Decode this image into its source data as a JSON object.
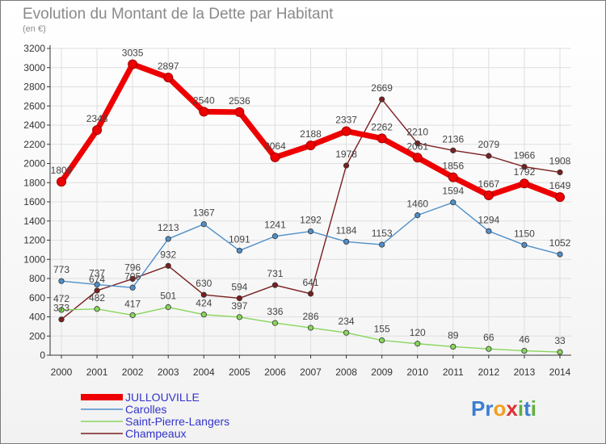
{
  "chart_data": {
    "type": "line",
    "title": "Evolution du Montant de la Dette par Habitant",
    "subtitle": "(en €)",
    "xlabel": "",
    "ylabel": "",
    "x": [
      "2000",
      "2001",
      "2002",
      "2003",
      "2004",
      "2005",
      "2006",
      "2007",
      "2008",
      "2009",
      "2010",
      "2011",
      "2012",
      "2013",
      "2014"
    ],
    "ylim": [
      0,
      3200
    ],
    "yticks": [
      "0",
      "200",
      "400",
      "600",
      "800",
      "1000",
      "1200",
      "1400",
      "1600",
      "1800",
      "2000",
      "2200",
      "2400",
      "2600",
      "2800",
      "3000",
      "3200"
    ],
    "grid": true,
    "legend_position": "bottom-left",
    "series": [
      {
        "name": "JULLOUVILLE",
        "color": "#ee0000",
        "values": [
          1809,
          2348,
          3035,
          2897,
          2540,
          2536,
          2064,
          2188,
          2337,
          2262,
          2061,
          1856,
          1667,
          1792,
          1649
        ],
        "labels": [
          "1809",
          "2348",
          "3035",
          "2897",
          "2540",
          "2536",
          "2064",
          "2188",
          "2337",
          "2262",
          "2061",
          "1856",
          "1667",
          "1792",
          "1649"
        ]
      },
      {
        "name": "Carolles",
        "color": "#4f8fc9",
        "values": [
          773,
          737,
          705,
          1213,
          1367,
          1091,
          1241,
          1292,
          1184,
          1153,
          1460,
          1594,
          1294,
          1150,
          1052
        ],
        "labels": [
          "773",
          "737",
          "705",
          "1213",
          "1367",
          "1091",
          "1241",
          "1292",
          "1184",
          "1153",
          "1460",
          "1594",
          "1294",
          "1150",
          "1052"
        ]
      },
      {
        "name": "Saint-Pierre-Langers",
        "color": "#88d65c",
        "values": [
          472,
          482,
          417,
          501,
          424,
          397,
          336,
          286,
          234,
          155,
          120,
          89,
          66,
          46,
          33
        ],
        "labels": [
          "472",
          "482",
          "417",
          "501",
          "424",
          "397",
          "336",
          "286",
          "234",
          "155",
          "120",
          "89",
          "66",
          "46",
          "33"
        ]
      },
      {
        "name": "Champeaux",
        "color": "#7a1f1f",
        "values": [
          373,
          674,
          796,
          932,
          630,
          594,
          731,
          641,
          1978,
          2669,
          2210,
          2136,
          2079,
          1966,
          1908
        ],
        "labels": [
          "373",
          "674",
          "796",
          "932",
          "630",
          "594",
          "731",
          "641",
          "1978",
          "2669",
          "2210",
          "2136",
          "2079",
          "1966",
          "1908"
        ]
      }
    ]
  },
  "logo": {
    "text": "Proxiti",
    "letters": [
      "P",
      "r",
      "o",
      "x",
      "i",
      "t",
      "i"
    ],
    "colors": [
      "#3b7fd1",
      "#3b7fd1",
      "#f0a020",
      "#e03030",
      "#60b040",
      "#3b7fd1",
      "#60b040"
    ]
  }
}
